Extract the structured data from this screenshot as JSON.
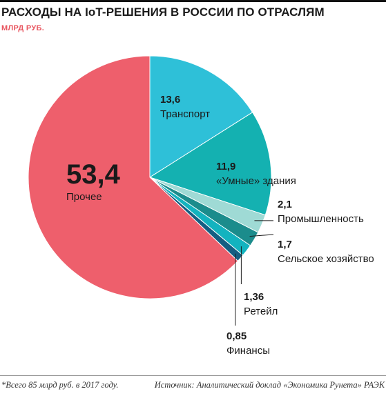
{
  "header": {
    "title": "РАСХОДЫ НА IoT-РЕШЕНИЯ В РОССИИ ПО ОТРАСЛЯМ",
    "subtitle": "МЛРД РУБ."
  },
  "chart_data": {
    "type": "pie",
    "title": "РАСХОДЫ НА IoT-РЕШЕНИЯ В РОССИИ ПО ОТРАСЛЯМ",
    "subtitle": "МЛРД РУБ.",
    "start": "12 o'clock, clockwise",
    "slices": [
      {
        "key": "transport",
        "label": "Транспорт",
        "value": 13.6,
        "value_text": "13,6",
        "color": "#2ec0d8"
      },
      {
        "key": "smart",
        "label": "«Умные» здания",
        "value": 11.9,
        "value_text": "11,9",
        "color": "#14b1b1"
      },
      {
        "key": "industry",
        "label": "Промышленность",
        "value": 2.1,
        "value_text": "2,1",
        "color": "#9fdad5"
      },
      {
        "key": "agri",
        "label": "Сельское хозяйство",
        "value": 1.7,
        "value_text": "1,7",
        "color": "#1b8c8c"
      },
      {
        "key": "retail",
        "label": "Ретейл",
        "value": 1.36,
        "value_text": "1,36",
        "color": "#13b3bf"
      },
      {
        "key": "finance",
        "label": "Финансы",
        "value": 0.85,
        "value_text": "0,85",
        "color": "#155e82"
      },
      {
        "key": "other",
        "label": "Прочее",
        "value": 53.4,
        "value_text": "53,4",
        "color": "#ee5f6c"
      }
    ]
  },
  "footer": {
    "note": "*Всего 85 млрд руб. в 2017 году.",
    "source": "Источник: Аналитический доклад «Экономика Рунета» РАЭК"
  }
}
